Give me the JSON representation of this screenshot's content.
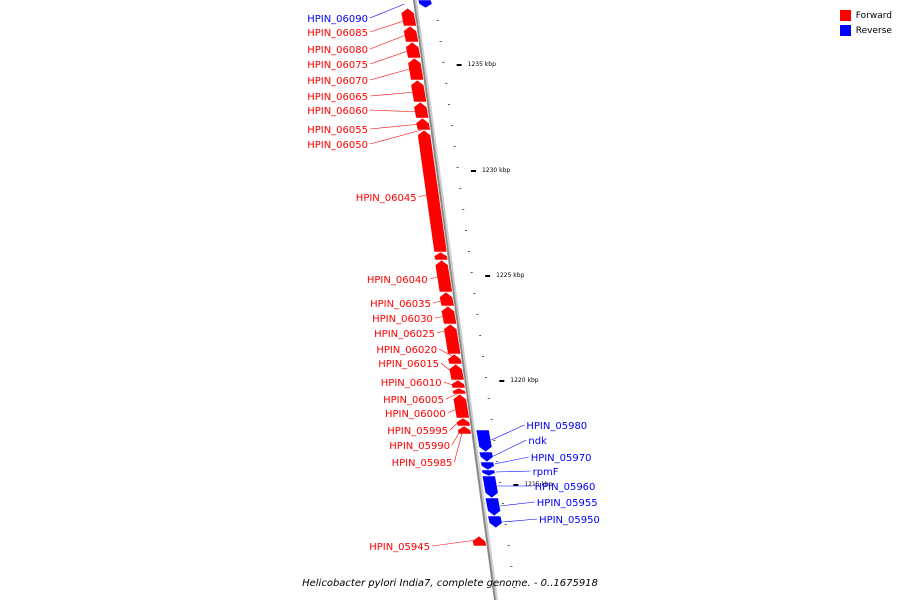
{
  "legend": {
    "forward_label": "Forward",
    "reverse_label": "Reverse",
    "forward_color": "#ff0000",
    "reverse_color": "#0000ff"
  },
  "caption": "Helicobacter pylori India7, complete genome. - 0..1675918",
  "axis": {
    "kbp_ticks": [
      "1235 kbp",
      "1230 kbp",
      "1225 kbp",
      "1220 kbp",
      "1215 kbp"
    ]
  },
  "genes": [
    {
      "name": "HPIN_06090",
      "strand": "reverse"
    },
    {
      "name": "HPIN_06085",
      "strand": "forward"
    },
    {
      "name": "HPIN_06080",
      "strand": "forward"
    },
    {
      "name": "HPIN_06075",
      "strand": "forward"
    },
    {
      "name": "HPIN_06070",
      "strand": "forward"
    },
    {
      "name": "HPIN_06065",
      "strand": "forward"
    },
    {
      "name": "HPIN_06060",
      "strand": "forward"
    },
    {
      "name": "HPIN_06055",
      "strand": "forward"
    },
    {
      "name": "HPIN_06050",
      "strand": "forward"
    },
    {
      "name": "HPIN_06045",
      "strand": "forward"
    },
    {
      "name": "HPIN_06040",
      "strand": "forward"
    },
    {
      "name": "HPIN_06035",
      "strand": "forward"
    },
    {
      "name": "HPIN_06030",
      "strand": "forward"
    },
    {
      "name": "HPIN_06025",
      "strand": "forward"
    },
    {
      "name": "HPIN_06020",
      "strand": "forward"
    },
    {
      "name": "HPIN_06015",
      "strand": "forward"
    },
    {
      "name": "HPIN_06010",
      "strand": "forward"
    },
    {
      "name": "HPIN_06005",
      "strand": "forward"
    },
    {
      "name": "HPIN_06000",
      "strand": "forward"
    },
    {
      "name": "HPIN_05995",
      "strand": "forward"
    },
    {
      "name": "HPIN_05990",
      "strand": "forward"
    },
    {
      "name": "HPIN_05985",
      "strand": "forward"
    },
    {
      "name": "HPIN_05980",
      "strand": "reverse"
    },
    {
      "name": "ndk",
      "strand": "reverse"
    },
    {
      "name": "HPIN_05970",
      "strand": "reverse"
    },
    {
      "name": "rpmF",
      "strand": "reverse"
    },
    {
      "name": "HPIN_05960",
      "strand": "reverse"
    },
    {
      "name": "HPIN_05955",
      "strand": "reverse"
    },
    {
      "name": "HPIN_05950",
      "strand": "reverse"
    },
    {
      "name": "HPIN_05945",
      "strand": "forward"
    }
  ]
}
